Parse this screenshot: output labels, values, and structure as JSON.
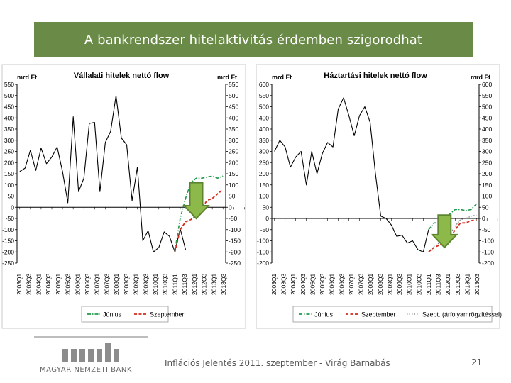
{
  "header": {
    "title": "A bankrendszer hitelaktivitás érdemben szigorodhat"
  },
  "footer": {
    "logo_text": "MAGYAR NEMZETI BANK",
    "text": "Inflációs Jelentés 2011. szeptember - Virág Barnabás",
    "page": "21"
  },
  "colors": {
    "title_bar": "#6a8b47",
    "history": "#000000",
    "june": "#1f9a4a",
    "september": "#d52b1e",
    "sept_fixed": "#7a7a7a",
    "arrow_fill": "#8db94a",
    "arrow_stroke": "#5d8530"
  },
  "icons": [
    "down-arrow-icon",
    "mnb-logo-icon"
  ],
  "chart_data": [
    {
      "type": "line",
      "title": "Vállalati hitelek nettó flow",
      "ylabel_left": "mrd Ft",
      "ylabel_right": "mrd Ft",
      "ylim": [
        -250,
        550
      ],
      "yticks": [
        550,
        500,
        450,
        400,
        350,
        300,
        250,
        200,
        150,
        100,
        50,
        0,
        -50,
        -100,
        -150,
        -200,
        -250
      ],
      "x_tick_labels": [
        "2003Q1",
        "2003Q3",
        "2004Q1",
        "2004Q3",
        "2005Q1",
        "2005Q3",
        "2006Q1",
        "2006Q3",
        "2007Q1",
        "2007Q3",
        "2008Q1",
        "2008Q3",
        "2009Q1",
        "2009Q3",
        "2010Q1",
        "2010Q3",
        "2011Q1",
        "2011Q3",
        "2012Q1",
        "2012Q3",
        "2013Q1",
        "2013Q3"
      ],
      "legend": [
        "Június",
        "Szeptember"
      ],
      "legend_placement": "bottom",
      "series": [
        {
          "values": [
            160,
            175,
            255,
            165,
            265,
            195,
            225,
            270,
            160,
            20,
            405,
            70,
            130,
            375,
            380,
            70,
            290,
            340,
            500,
            310,
            280,
            30,
            180,
            -150,
            -105,
            -200,
            -180,
            -110,
            -130,
            -200,
            -95,
            -190
          ],
          "style": "solid",
          "color_key": "history"
        },
        {
          "name": "Június",
          "values": [
            -195,
            -50,
            40,
            110,
            130,
            130,
            135,
            140,
            130,
            140
          ],
          "start_index": 29,
          "style": "dash-dot",
          "color_key": "june"
        },
        {
          "name": "Szeptember",
          "values": [
            -200,
            -100,
            -65,
            -55,
            -35,
            -5,
            30,
            40,
            60,
            80
          ],
          "start_index": 29,
          "style": "dashed",
          "color_key": "september"
        }
      ],
      "arrow": {
        "x_index": 33,
        "from": 110,
        "to": -50
      }
    },
    {
      "type": "line",
      "title": "Háztartási hitelek nettó flow",
      "ylabel_left": "mrd Ft",
      "ylabel_right": "mrd Ft",
      "ylim": [
        -200,
        600
      ],
      "yticks": [
        600,
        550,
        500,
        450,
        400,
        350,
        300,
        250,
        200,
        150,
        100,
        50,
        0,
        -50,
        -100,
        -150,
        -200
      ],
      "x_tick_labels": [
        "2003Q1",
        "2003Q3",
        "2004Q1",
        "2004Q3",
        "2005Q1",
        "2005Q3",
        "2006Q1",
        "2006Q3",
        "2007Q1",
        "2007Q3",
        "2008Q1",
        "2008Q3",
        "2009Q1",
        "2009Q3",
        "2010Q1",
        "2010Q3",
        "2011Q1",
        "2011Q3",
        "2012Q1",
        "2012Q3",
        "2013Q1",
        "2013Q3"
      ],
      "legend": [
        "Június",
        "Szeptember",
        "Szept. (árfolyamrögzítéssel)"
      ],
      "legend_placement": "bottom",
      "series": [
        {
          "values": [
            300,
            350,
            320,
            230,
            275,
            300,
            150,
            300,
            200,
            290,
            340,
            320,
            490,
            540,
            460,
            370,
            460,
            500,
            430,
            200,
            10,
            0,
            -30,
            -80,
            -75,
            -110,
            -100,
            -140,
            -150,
            -50
          ],
          "style": "solid",
          "color_key": "history"
        },
        {
          "name": "Június",
          "values": [
            -50,
            -20,
            -20,
            -30,
            20,
            40,
            40,
            35,
            40,
            65
          ],
          "start_index": 29,
          "style": "dash-dot",
          "color_key": "june"
        },
        {
          "name": "Szeptember",
          "values": [
            -150,
            -130,
            -120,
            -110,
            -90,
            -50,
            -20,
            -20,
            -10,
            -5
          ],
          "start_index": 29,
          "style": "dashed",
          "color_key": "september"
        },
        {
          "name": "Szept. (árfolyamrögzítéssel)",
          "values": [
            -150,
            -125,
            -110,
            -95,
            -70,
            -35,
            -5,
            0,
            10,
            15
          ],
          "start_index": 29,
          "style": "dotted",
          "color_key": "sept_fixed"
        }
      ],
      "arrow": {
        "x_index": 32,
        "from": 15,
        "to": -130
      }
    }
  ]
}
